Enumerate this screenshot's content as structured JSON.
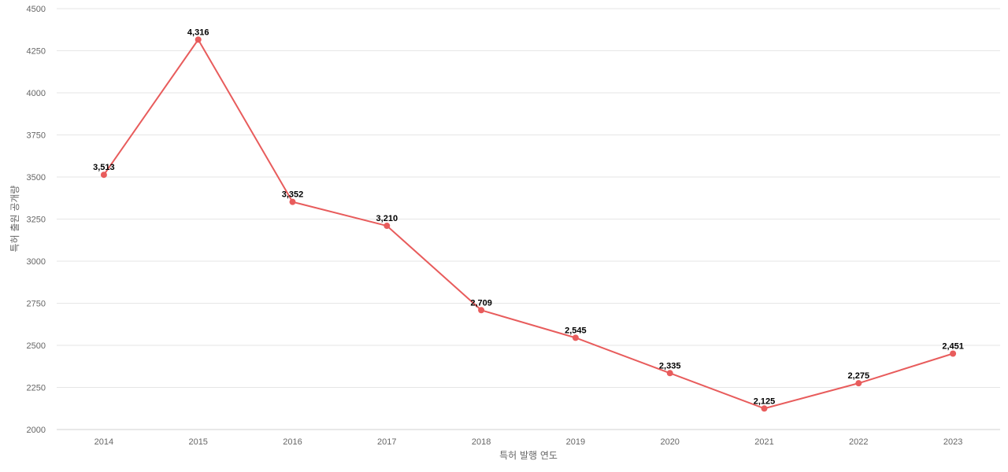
{
  "chart_data": {
    "type": "line",
    "title": "",
    "xlabel": "특허 발행 연도",
    "ylabel": "특허 출원 공개량",
    "categories": [
      "2014",
      "2015",
      "2016",
      "2017",
      "2018",
      "2019",
      "2020",
      "2021",
      "2022",
      "2023"
    ],
    "series": [
      {
        "values": [
          3513,
          4316,
          3352,
          3210,
          2709,
          2545,
          2335,
          2125,
          2275,
          2451
        ],
        "labels": [
          "3,513",
          "4,316",
          "3,352",
          "3,210",
          "2,709",
          "2,545",
          "2,335",
          "2,125",
          "2,275",
          "2,451"
        ],
        "color": "#e85c5c"
      }
    ],
    "ylim": [
      2000,
      4500
    ],
    "yticks": [
      "2000",
      "2250",
      "2500",
      "2750",
      "3000",
      "3250",
      "3500",
      "3750",
      "4000",
      "4250",
      "4500"
    ],
    "grid": true,
    "legend": "none"
  }
}
